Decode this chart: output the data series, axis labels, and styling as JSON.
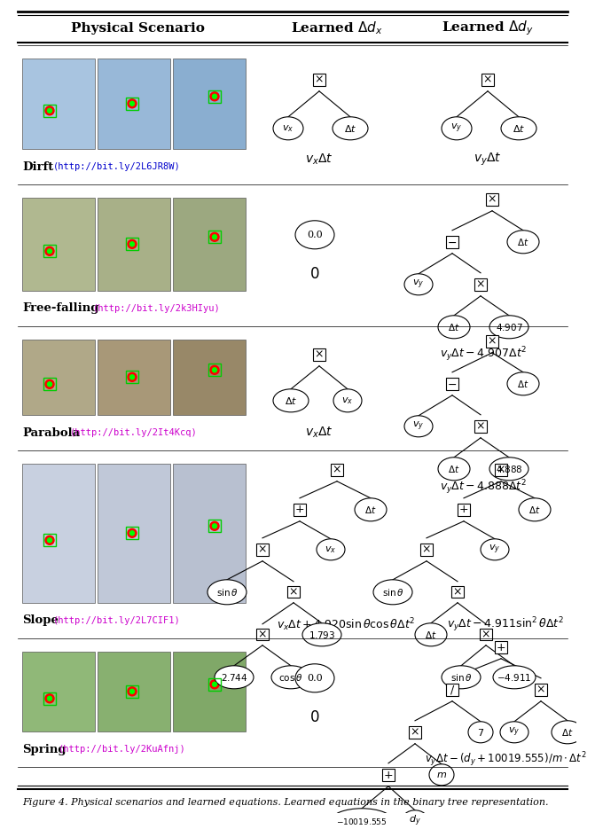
{
  "col_headers": [
    "Physical Scenario",
    "Learned $\\Delta d_x$",
    "Learned $\\Delta d_y$"
  ],
  "row_labels": [
    "Dirft",
    "Free-falling",
    "Parabola",
    "Slope",
    "Spring"
  ],
  "row_urls": [
    "http://bit.ly/2L6JR8W",
    "http://bit.ly/2k3HIyu",
    "http://bit.ly/2It4Kcq",
    "http://bit.ly/2L7CIF1",
    "http://bit.ly/2KuAfnj"
  ],
  "dx_equations": [
    "$v_x\\Delta t$",
    "$0$",
    "$v_x\\Delta t$",
    "$v_x\\Delta t + 4.920\\sin\\theta\\cos\\theta\\Delta t^2$",
    "$0$"
  ],
  "dy_equations": [
    "$v_y\\Delta t$",
    "$v_y\\Delta t - 4.907\\Delta t^2$",
    "$v_y\\Delta t - 4.888\\Delta t^2$",
    "$v_y\\Delta t - 4.911\\sin^2\\theta\\Delta t^2$",
    "$v_y\\Delta t-(d_y+10019.555)/m\\cdot\\Delta t^2$"
  ],
  "img_colors": [
    [
      "#a8c4e0",
      "#98b8d8",
      "#8aaed0"
    ],
    [
      "#b0b890",
      "#a8b088",
      "#9ca880"
    ],
    [
      "#b0a888",
      "#a89878",
      "#988868"
    ],
    [
      "#c8d0e0",
      "#c0c8d8",
      "#b8c0d0"
    ],
    [
      "#90b878",
      "#88b070",
      "#80a868"
    ]
  ],
  "caption": "Figure 4. Physical scenarios and learned equations. Learned equations in the binary tree representation.",
  "background_color": "#ffffff",
  "url_color": "#cc00cc",
  "url_color_drift": "#0000cc"
}
